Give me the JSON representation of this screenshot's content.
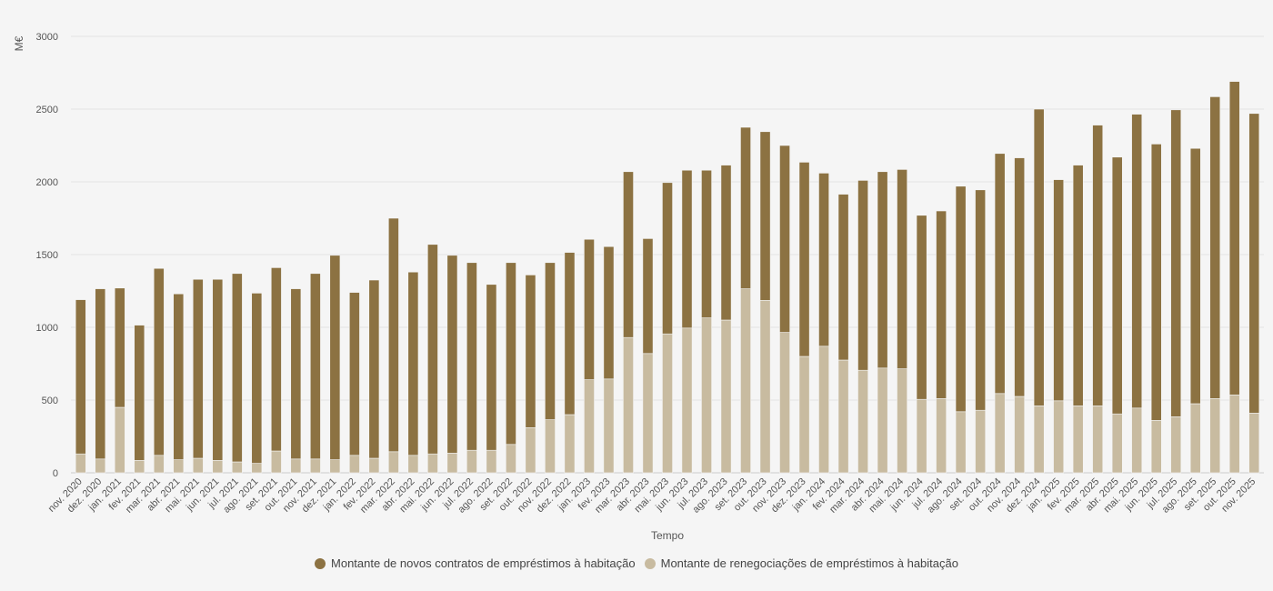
{
  "chart_data": {
    "type": "bar",
    "stacked": true,
    "ylabel": "M€",
    "xlabel": "Tempo",
    "ylim": [
      0,
      3000
    ],
    "yticks": [
      0,
      500,
      1000,
      1500,
      2000,
      2500,
      3000
    ],
    "grid": true,
    "legend_position": "bottom-center",
    "categories": [
      "nov. 2020",
      "dez. 2020",
      "jan. 2021",
      "fev. 2021",
      "mar. 2021",
      "abr. 2021",
      "mai. 2021",
      "jun. 2021",
      "jul. 2021",
      "ago. 2021",
      "set. 2021",
      "out. 2021",
      "nov. 2021",
      "dez. 2021",
      "jan. 2022",
      "fev. 2022",
      "mar. 2022",
      "abr. 2022",
      "mai. 2022",
      "jun. 2022",
      "jul. 2022",
      "ago. 2022",
      "set. 2022",
      "out. 2022",
      "nov. 2022",
      "dez. 2022",
      "jan. 2023",
      "fev. 2023",
      "mar. 2023",
      "abr. 2023",
      "mai. 2023",
      "jun. 2023",
      "jul. 2023",
      "ago. 2023",
      "set. 2023",
      "out. 2023",
      "nov. 2023",
      "dez. 2023",
      "jan. 2024",
      "fev. 2024",
      "mar. 2024",
      "abr. 2024",
      "mai. 2024",
      "jun. 2024",
      "jul. 2024",
      "ago. 2024",
      "set. 2024",
      "out. 2024",
      "nov. 2024",
      "dez. 2024",
      "jan. 2025",
      "fev. 2025",
      "mar. 2025",
      "abr. 2025",
      "mai. 2025",
      "jun. 2025",
      "jul. 2025",
      "ago. 2025",
      "set. 2025",
      "out. 2025",
      "nov. 2025"
    ],
    "series": [
      {
        "name": "Montante de renegociações de empréstimos à habitação",
        "color": "#c8bba0",
        "values": [
          130,
          95,
          450,
          85,
          120,
          90,
          100,
          85,
          75,
          65,
          150,
          95,
          95,
          90,
          120,
          100,
          145,
          120,
          130,
          135,
          155,
          155,
          195,
          310,
          365,
          400,
          640,
          645,
          930,
          820,
          955,
          995,
          1065,
          1050,
          1265,
          1185,
          965,
          800,
          870,
          775,
          705,
          720,
          715,
          505,
          510,
          420,
          430,
          545,
          525,
          460,
          495,
          460,
          460,
          405,
          445,
          360,
          385,
          475,
          510,
          535,
          410
        ]
      },
      {
        "name": "Montante de novos contratos de empréstimos à habitação",
        "color": "#8c7242",
        "values": [
          1060,
          1170,
          820,
          930,
          1285,
          1140,
          1230,
          1245,
          1295,
          1170,
          1260,
          1170,
          1275,
          1405,
          1120,
          1225,
          1605,
          1260,
          1440,
          1360,
          1290,
          1140,
          1250,
          1050,
          1080,
          1115,
          965,
          910,
          1140,
          790,
          1040,
          1085,
          1015,
          1065,
          1110,
          1160,
          1285,
          1335,
          1190,
          1140,
          1305,
          1350,
          1370,
          1265,
          1290,
          1550,
          1515,
          1650,
          1640,
          2040,
          1520,
          1655,
          1930,
          1765,
          2020,
          1900,
          2110,
          1755,
          2075,
          2155,
          2060
        ]
      }
    ]
  }
}
